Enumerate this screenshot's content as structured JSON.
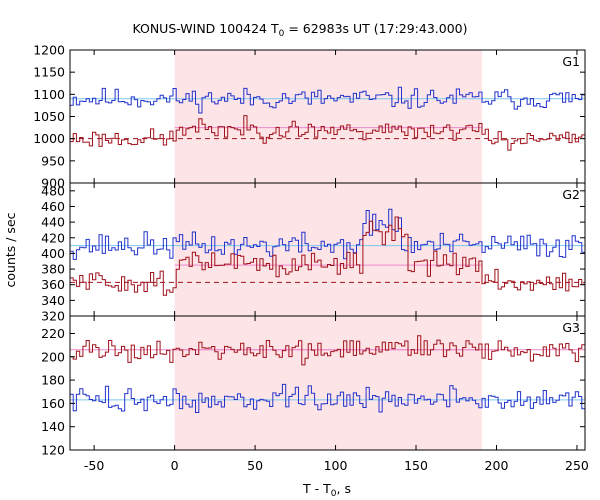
{
  "chart_data": {
    "type": "line",
    "title": "KONUS-WIND 100424 T",
    "title_sub": "0",
    "title_rest": " = 62983s UT (17:29:43.000)",
    "xlabel": "T - T",
    "xlabel_sub": "0",
    "xlabel_rest": ", s",
    "ylabel": "counts / sec",
    "xlim": [
      -65,
      255
    ],
    "xticks": [
      "-50",
      "0",
      "50",
      "100",
      "150",
      "200",
      "250"
    ],
    "xtick_values": [
      -50,
      0,
      50,
      100,
      150,
      200,
      250
    ],
    "shade_interval": [
      0,
      191
    ],
    "colors": {
      "shade": "#fde4e6",
      "blue": "#2233cc",
      "red": "#a0111c",
      "blue_bg": "#7cc8ee",
      "red_bg": "#a0111c",
      "pink": "#ee88cc",
      "grid": "#000000"
    },
    "panels": [
      {
        "name": "G1",
        "ylim": [
          900,
          1200
        ],
        "yticks": [
          "900",
          "950",
          "1000",
          "1050",
          "1100",
          "1150",
          "1200"
        ],
        "ytick_values": [
          900,
          950,
          1000,
          1050,
          1100,
          1150,
          1200
        ],
        "blue_bg": 1090,
        "red_bg": 1000,
        "blue_level": 1090,
        "red_level": 1025,
        "blue_seed": 11,
        "red_seed": 23,
        "blue_noise": 18,
        "red_noise": 16,
        "red_bump": [
          [
            0,
            25
          ],
          [
            191,
            0
          ]
        ]
      },
      {
        "name": "G2",
        "ylim": [
          320,
          490
        ],
        "yticks": [
          "320",
          "340",
          "360",
          "380",
          "400",
          "420",
          "440",
          "460",
          "480"
        ],
        "ytick_values": [
          320,
          340,
          360,
          380,
          400,
          420,
          440,
          460,
          480
        ],
        "blue_bg": 410,
        "red_bg": 363,
        "blue_level": 410,
        "red_level": 385,
        "blue_seed": 37,
        "red_seed": 51,
        "blue_noise": 12,
        "red_noise": 11,
        "red_bump": [
          [
            0,
            30
          ],
          [
            191,
            0
          ]
        ]
      },
      {
        "name": "G3",
        "ylim": [
          120,
          235
        ],
        "yticks": [
          "120",
          "140",
          "160",
          "180",
          "200",
          "220"
        ],
        "ytick_values": [
          120,
          140,
          160,
          180,
          200,
          220
        ],
        "blue_bg": 163,
        "red_bg": 206,
        "blue_level": 163,
        "red_level": 206,
        "blue_seed": 73,
        "red_seed": 91,
        "blue_noise": 8,
        "red_noise": 8,
        "red_bump": [
          [
            0,
            0
          ],
          [
            191,
            0
          ]
        ]
      }
    ]
  }
}
